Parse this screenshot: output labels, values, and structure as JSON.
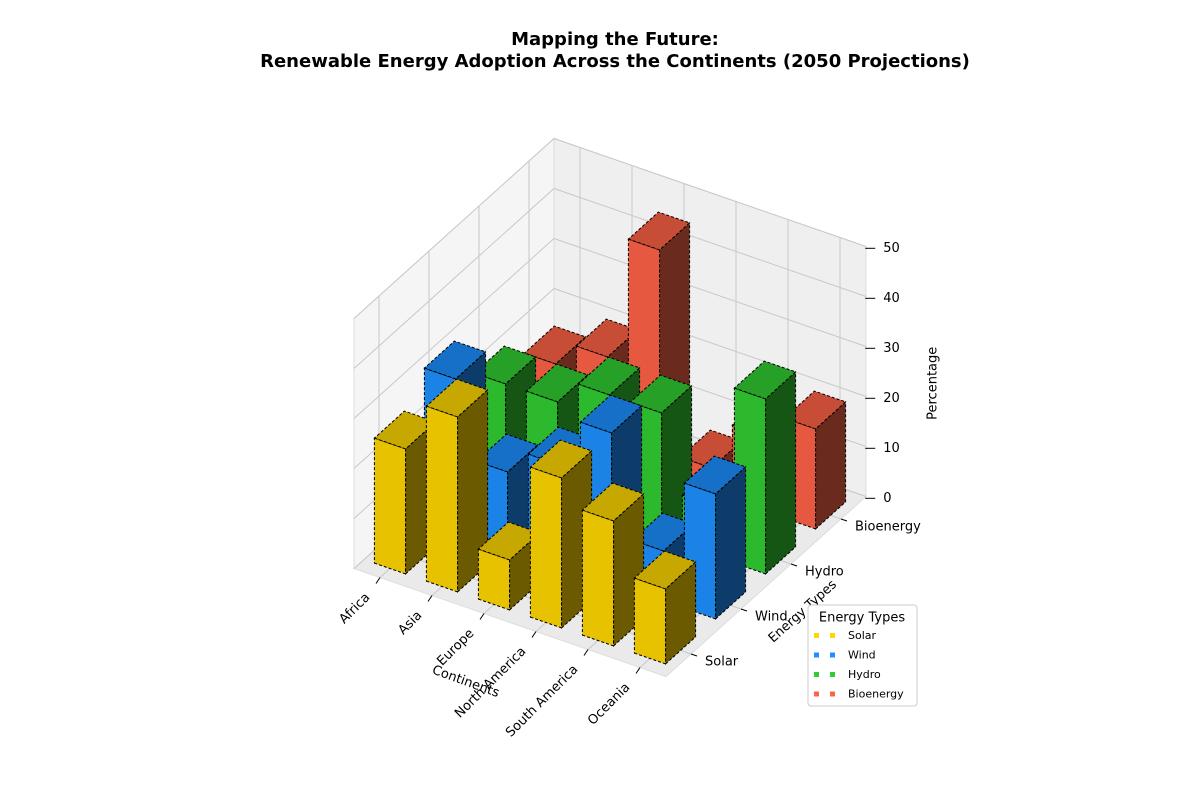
{
  "chart_data": {
    "type": "bar3d",
    "title": [
      "Mapping the Future:",
      "Renewable Energy Adoption Across the Continents (2050 Projections)"
    ],
    "xlabel": "Continents",
    "ylabel": "Energy Types",
    "zlabel": "Percentage",
    "categories": [
      "Africa",
      "Asia",
      "Europe",
      "North America",
      "South America",
      "Oceania"
    ],
    "series": [
      {
        "name": "Solar",
        "color": "#FFD700",
        "values": [
          25,
          35,
          10,
          30,
          25,
          15
        ]
      },
      {
        "name": "Wind",
        "color": "#1E90FF",
        "values": [
          30,
          15,
          20,
          30,
          10,
          25
        ]
      },
      {
        "name": "Hydro",
        "color": "#32CD32",
        "values": [
          20,
          20,
          25,
          25,
          10,
          35
        ]
      },
      {
        "name": "Bioenergy",
        "color": "#FF6347",
        "values": [
          15,
          20,
          45,
          5,
          15,
          20
        ]
      }
    ],
    "zlim": [
      0,
      50
    ],
    "zticks": [
      0,
      10,
      20,
      30,
      40,
      50
    ],
    "grid": true,
    "legend": {
      "title": "Energy Types",
      "loc": "lower right"
    }
  }
}
